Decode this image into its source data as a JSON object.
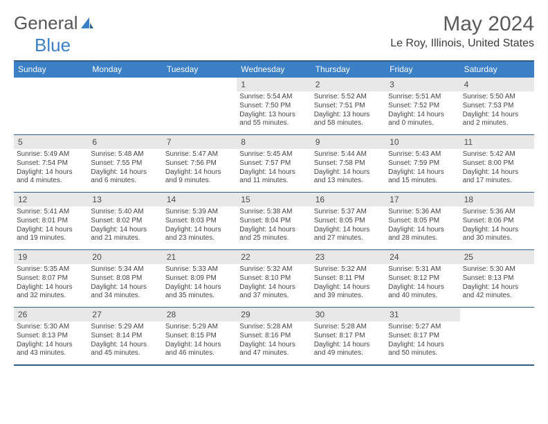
{
  "brand": {
    "word1": "General",
    "word2": "Blue"
  },
  "title": "May 2024",
  "location": "Le Roy, Illinois, United States",
  "colors": {
    "accent": "#3b7fc4",
    "border": "#2f5d87",
    "lightgrey": "#e8e8e8"
  },
  "dow": [
    "Sunday",
    "Monday",
    "Tuesday",
    "Wednesday",
    "Thursday",
    "Friday",
    "Saturday"
  ],
  "weeks": [
    {
      "days": [
        {
          "num": "",
          "sunrise": "",
          "sunset": "",
          "daylight": ""
        },
        {
          "num": "",
          "sunrise": "",
          "sunset": "",
          "daylight": ""
        },
        {
          "num": "",
          "sunrise": "",
          "sunset": "",
          "daylight": ""
        },
        {
          "num": "1",
          "sunrise": "Sunrise: 5:54 AM",
          "sunset": "Sunset: 7:50 PM",
          "daylight": "Daylight: 13 hours and 55 minutes."
        },
        {
          "num": "2",
          "sunrise": "Sunrise: 5:52 AM",
          "sunset": "Sunset: 7:51 PM",
          "daylight": "Daylight: 13 hours and 58 minutes."
        },
        {
          "num": "3",
          "sunrise": "Sunrise: 5:51 AM",
          "sunset": "Sunset: 7:52 PM",
          "daylight": "Daylight: 14 hours and 0 minutes."
        },
        {
          "num": "4",
          "sunrise": "Sunrise: 5:50 AM",
          "sunset": "Sunset: 7:53 PM",
          "daylight": "Daylight: 14 hours and 2 minutes."
        }
      ]
    },
    {
      "days": [
        {
          "num": "5",
          "sunrise": "Sunrise: 5:49 AM",
          "sunset": "Sunset: 7:54 PM",
          "daylight": "Daylight: 14 hours and 4 minutes."
        },
        {
          "num": "6",
          "sunrise": "Sunrise: 5:48 AM",
          "sunset": "Sunset: 7:55 PM",
          "daylight": "Daylight: 14 hours and 6 minutes."
        },
        {
          "num": "7",
          "sunrise": "Sunrise: 5:47 AM",
          "sunset": "Sunset: 7:56 PM",
          "daylight": "Daylight: 14 hours and 9 minutes."
        },
        {
          "num": "8",
          "sunrise": "Sunrise: 5:45 AM",
          "sunset": "Sunset: 7:57 PM",
          "daylight": "Daylight: 14 hours and 11 minutes."
        },
        {
          "num": "9",
          "sunrise": "Sunrise: 5:44 AM",
          "sunset": "Sunset: 7:58 PM",
          "daylight": "Daylight: 14 hours and 13 minutes."
        },
        {
          "num": "10",
          "sunrise": "Sunrise: 5:43 AM",
          "sunset": "Sunset: 7:59 PM",
          "daylight": "Daylight: 14 hours and 15 minutes."
        },
        {
          "num": "11",
          "sunrise": "Sunrise: 5:42 AM",
          "sunset": "Sunset: 8:00 PM",
          "daylight": "Daylight: 14 hours and 17 minutes."
        }
      ]
    },
    {
      "days": [
        {
          "num": "12",
          "sunrise": "Sunrise: 5:41 AM",
          "sunset": "Sunset: 8:01 PM",
          "daylight": "Daylight: 14 hours and 19 minutes."
        },
        {
          "num": "13",
          "sunrise": "Sunrise: 5:40 AM",
          "sunset": "Sunset: 8:02 PM",
          "daylight": "Daylight: 14 hours and 21 minutes."
        },
        {
          "num": "14",
          "sunrise": "Sunrise: 5:39 AM",
          "sunset": "Sunset: 8:03 PM",
          "daylight": "Daylight: 14 hours and 23 minutes."
        },
        {
          "num": "15",
          "sunrise": "Sunrise: 5:38 AM",
          "sunset": "Sunset: 8:04 PM",
          "daylight": "Daylight: 14 hours and 25 minutes."
        },
        {
          "num": "16",
          "sunrise": "Sunrise: 5:37 AM",
          "sunset": "Sunset: 8:05 PM",
          "daylight": "Daylight: 14 hours and 27 minutes."
        },
        {
          "num": "17",
          "sunrise": "Sunrise: 5:36 AM",
          "sunset": "Sunset: 8:05 PM",
          "daylight": "Daylight: 14 hours and 28 minutes."
        },
        {
          "num": "18",
          "sunrise": "Sunrise: 5:36 AM",
          "sunset": "Sunset: 8:06 PM",
          "daylight": "Daylight: 14 hours and 30 minutes."
        }
      ]
    },
    {
      "days": [
        {
          "num": "19",
          "sunrise": "Sunrise: 5:35 AM",
          "sunset": "Sunset: 8:07 PM",
          "daylight": "Daylight: 14 hours and 32 minutes."
        },
        {
          "num": "20",
          "sunrise": "Sunrise: 5:34 AM",
          "sunset": "Sunset: 8:08 PM",
          "daylight": "Daylight: 14 hours and 34 minutes."
        },
        {
          "num": "21",
          "sunrise": "Sunrise: 5:33 AM",
          "sunset": "Sunset: 8:09 PM",
          "daylight": "Daylight: 14 hours and 35 minutes."
        },
        {
          "num": "22",
          "sunrise": "Sunrise: 5:32 AM",
          "sunset": "Sunset: 8:10 PM",
          "daylight": "Daylight: 14 hours and 37 minutes."
        },
        {
          "num": "23",
          "sunrise": "Sunrise: 5:32 AM",
          "sunset": "Sunset: 8:11 PM",
          "daylight": "Daylight: 14 hours and 39 minutes."
        },
        {
          "num": "24",
          "sunrise": "Sunrise: 5:31 AM",
          "sunset": "Sunset: 8:12 PM",
          "daylight": "Daylight: 14 hours and 40 minutes."
        },
        {
          "num": "25",
          "sunrise": "Sunrise: 5:30 AM",
          "sunset": "Sunset: 8:13 PM",
          "daylight": "Daylight: 14 hours and 42 minutes."
        }
      ]
    },
    {
      "days": [
        {
          "num": "26",
          "sunrise": "Sunrise: 5:30 AM",
          "sunset": "Sunset: 8:13 PM",
          "daylight": "Daylight: 14 hours and 43 minutes."
        },
        {
          "num": "27",
          "sunrise": "Sunrise: 5:29 AM",
          "sunset": "Sunset: 8:14 PM",
          "daylight": "Daylight: 14 hours and 45 minutes."
        },
        {
          "num": "28",
          "sunrise": "Sunrise: 5:29 AM",
          "sunset": "Sunset: 8:15 PM",
          "daylight": "Daylight: 14 hours and 46 minutes."
        },
        {
          "num": "29",
          "sunrise": "Sunrise: 5:28 AM",
          "sunset": "Sunset: 8:16 PM",
          "daylight": "Daylight: 14 hours and 47 minutes."
        },
        {
          "num": "30",
          "sunrise": "Sunrise: 5:28 AM",
          "sunset": "Sunset: 8:17 PM",
          "daylight": "Daylight: 14 hours and 49 minutes."
        },
        {
          "num": "31",
          "sunrise": "Sunrise: 5:27 AM",
          "sunset": "Sunset: 8:17 PM",
          "daylight": "Daylight: 14 hours and 50 minutes."
        },
        {
          "num": "",
          "sunrise": "",
          "sunset": "",
          "daylight": ""
        }
      ]
    }
  ]
}
